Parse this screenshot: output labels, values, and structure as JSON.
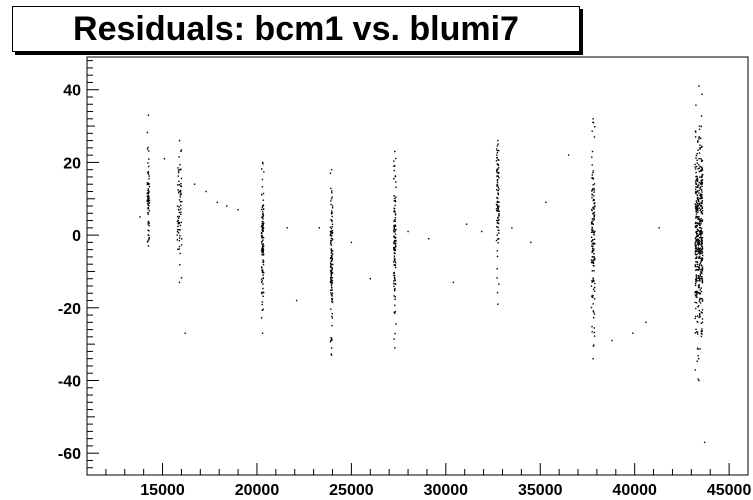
{
  "chart_data": {
    "type": "scatter",
    "title": "Residuals: bcm1 vs. blumi7",
    "xlabel": "",
    "ylabel": "",
    "xlim": [
      11000,
      46000
    ],
    "ylim": [
      -66,
      49
    ],
    "x_ticks": [
      15000,
      20000,
      25000,
      30000,
      35000,
      40000,
      45000
    ],
    "y_ticks": [
      -60,
      -40,
      -20,
      0,
      20,
      40
    ],
    "x_tick_labels": [
      "15000",
      "20000",
      "25000",
      "30000",
      "35000",
      "40000",
      "45000"
    ],
    "y_tick_labels": [
      "-60",
      "-40",
      "-20",
      "0",
      "20",
      "40"
    ],
    "grid": false,
    "legend": "none",
    "marker_color": "#000000",
    "clusters": [
      {
        "x": 14250,
        "x_spread": 60,
        "y_min": -3,
        "y_max": 33,
        "y_center": 12,
        "y_sd": 8,
        "count": 70
      },
      {
        "x": 15900,
        "x_spread": 120,
        "y_min": -13,
        "y_max": 26,
        "y_center": 6,
        "y_sd": 8,
        "count": 70
      },
      {
        "x": 20300,
        "x_spread": 60,
        "y_min": -27,
        "y_max": 20,
        "y_center": -2,
        "y_sd": 9,
        "count": 110
      },
      {
        "x": 23950,
        "x_spread": 60,
        "y_min": -33,
        "y_max": 18,
        "y_center": -8,
        "y_sd": 10,
        "count": 130
      },
      {
        "x": 27300,
        "x_spread": 60,
        "y_min": -31,
        "y_max": 23,
        "y_center": -3,
        "y_sd": 10,
        "count": 110
      },
      {
        "x": 32750,
        "x_spread": 70,
        "y_min": -19,
        "y_max": 26,
        "y_center": 8,
        "y_sd": 9,
        "count": 90
      },
      {
        "x": 37800,
        "x_spread": 90,
        "y_min": -34,
        "y_max": 32,
        "y_center": 0,
        "y_sd": 12,
        "count": 140
      },
      {
        "x": 43400,
        "x_spread": 200,
        "y_min": -40,
        "y_max": 41,
        "y_center": 0,
        "y_sd": 14,
        "count": 480
      }
    ],
    "points": [
      [
        13800,
        5
      ],
      [
        15100,
        21
      ],
      [
        16200,
        -27
      ],
      [
        16700,
        14
      ],
      [
        17300,
        12
      ],
      [
        17900,
        9
      ],
      [
        18400,
        8
      ],
      [
        19000,
        7
      ],
      [
        21600,
        2
      ],
      [
        22100,
        -18
      ],
      [
        23300,
        2
      ],
      [
        25000,
        -2
      ],
      [
        26000,
        -12
      ],
      [
        28000,
        1
      ],
      [
        29100,
        -1
      ],
      [
        30400,
        -13
      ],
      [
        31100,
        3
      ],
      [
        31900,
        1
      ],
      [
        33500,
        2
      ],
      [
        34500,
        -2
      ],
      [
        35300,
        9
      ],
      [
        36500,
        22
      ],
      [
        38800,
        -29
      ],
      [
        39900,
        -27
      ],
      [
        40600,
        -24
      ],
      [
        41300,
        2
      ],
      [
        43700,
        -57
      ]
    ]
  }
}
